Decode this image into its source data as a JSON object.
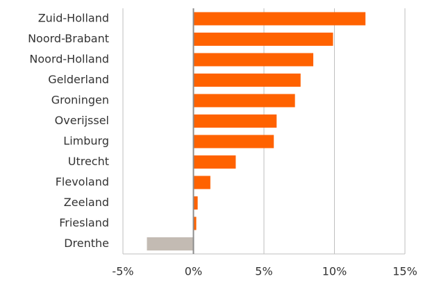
{
  "chart_data": {
    "type": "barh",
    "categories": [
      "Zuid-Holland",
      "Noord-Brabant",
      "Noord-Holland",
      "Gelderland",
      "Groningen",
      "Overijssel",
      "Limburg",
      "Utrecht",
      "Flevoland",
      "Zeeland",
      "Friesland",
      "Drenthe"
    ],
    "values": [
      12.2,
      9.9,
      8.5,
      7.6,
      7.2,
      5.9,
      5.7,
      3.0,
      1.2,
      0.3,
      0.2,
      -3.3
    ],
    "colors": [
      "#ff6200",
      "#ff6200",
      "#ff6200",
      "#ff6200",
      "#ff6200",
      "#ff6200",
      "#ff6200",
      "#ff6200",
      "#ff6200",
      "#ff6200",
      "#ff6200",
      "#c3bbb3"
    ],
    "xlim": [
      -5,
      15
    ],
    "xticks": [
      {
        "value": -5,
        "label": "-5%"
      },
      {
        "value": 0,
        "label": "0%"
      },
      {
        "value": 5,
        "label": "5%"
      },
      {
        "value": 10,
        "label": "10%"
      },
      {
        "value": 15,
        "label": "15%"
      }
    ],
    "grid": true
  }
}
